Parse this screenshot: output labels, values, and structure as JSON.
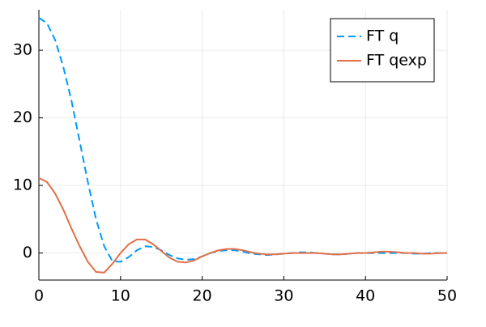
{
  "chart_data": {
    "type": "line",
    "x": [
      0,
      1,
      2,
      3,
      4,
      5,
      6,
      7,
      8,
      9,
      10,
      11,
      12,
      13,
      14,
      15,
      16,
      17,
      18,
      19,
      20,
      21,
      22,
      23,
      24,
      25,
      26,
      27,
      28,
      29,
      30,
      31,
      32,
      33,
      34,
      35,
      36,
      37,
      38,
      39,
      40,
      41,
      42,
      43,
      44,
      45,
      46,
      47,
      48,
      49,
      50
    ],
    "series": [
      {
        "name": "FT q",
        "color": "#009af9",
        "dash": true,
        "values": [
          34.8,
          34,
          31.5,
          27.5,
          22.5,
          16.5,
          10.5,
          5,
          1,
          -1.2,
          -1.3,
          -0.6,
          0.4,
          1,
          0.9,
          0.4,
          -0.3,
          -0.8,
          -1,
          -0.9,
          -0.5,
          0,
          0.3,
          0.4,
          0.4,
          0.2,
          -0.1,
          -0.2,
          -0.3,
          -0.2,
          -0.1,
          0,
          0.1,
          0.1,
          0,
          -0.1,
          -0.2,
          -0.2,
          -0.1,
          0,
          0,
          0,
          0,
          0,
          0,
          0,
          -0.1,
          -0.1,
          0,
          0,
          0
        ]
      },
      {
        "name": "FT qexp",
        "color": "#e26f46",
        "dash": false,
        "values": [
          11.1,
          10.5,
          8.8,
          6.4,
          3.6,
          1,
          -1.3,
          -2.8,
          -2.9,
          -1.6,
          0,
          1.3,
          2,
          2,
          1.3,
          0.3,
          -0.7,
          -1.3,
          -1.4,
          -1.1,
          -0.5,
          0,
          0.4,
          0.6,
          0.6,
          0.4,
          0.1,
          -0.1,
          -0.2,
          -0.2,
          -0.1,
          0,
          0,
          0,
          0,
          -0.1,
          -0.2,
          -0.2,
          -0.1,
          0,
          0,
          0.1,
          0.2,
          0.2,
          0.1,
          0,
          0,
          -0.1,
          -0.1,
          0,
          0
        ]
      }
    ],
    "xlim": [
      0,
      50
    ],
    "xticks": [
      0,
      10,
      20,
      30,
      40,
      50
    ],
    "ylim": [
      -4,
      36
    ],
    "yticks": [
      0,
      10,
      20,
      30
    ],
    "grid": true,
    "legend": "top-right"
  }
}
